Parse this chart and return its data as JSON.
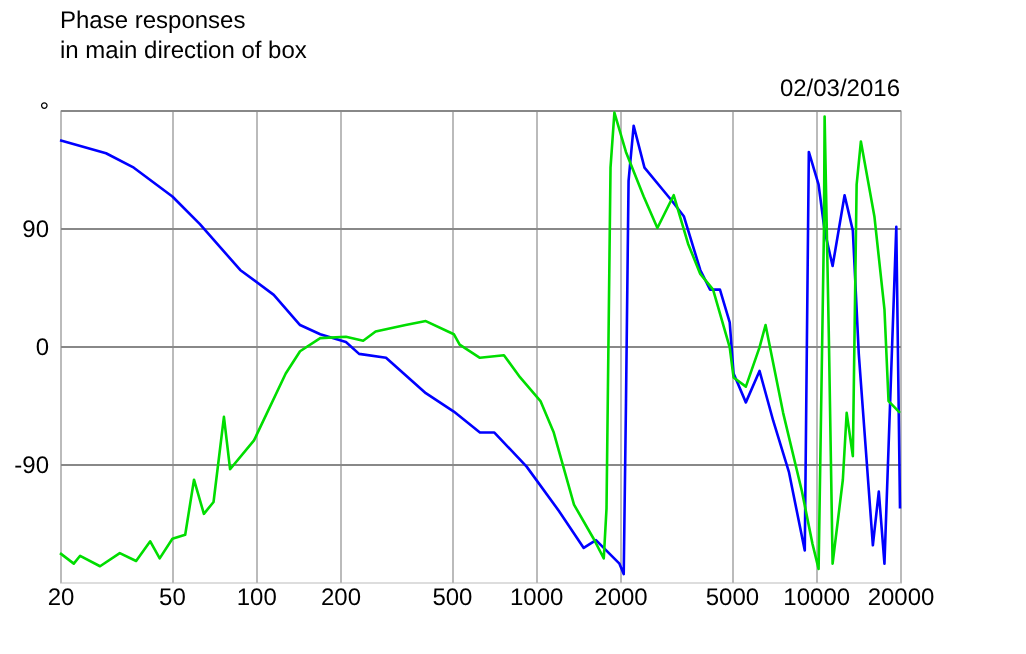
{
  "chart_data": {
    "type": "line",
    "title": "Phase responses",
    "subtitle": "in main direction of box",
    "annotations": [
      "02/03/2016"
    ],
    "xlim": [
      20,
      20000
    ],
    "xticks": [
      20,
      50,
      100,
      200,
      500,
      1000,
      2000,
      5000,
      10000,
      20000
    ],
    "log": "x",
    "ylim": [
      -180,
      180
    ],
    "yticks": [
      {
        "value": 180,
        "label": "°"
      },
      90,
      0,
      -90
    ],
    "grid": true,
    "line_style": "solid",
    "marker": "none",
    "series": [
      {
        "color": "#0000ff",
        "x": [
          20,
          29.2,
          36.7,
          50.4,
          63.2,
          88,
          116,
          144,
          170,
          210,
          234,
          292,
          405,
          510,
          632,
          712,
          928,
          1212,
          1484,
          1641,
          1991,
          2062,
          2100,
          2146,
          2238,
          2446,
          3058,
          3380,
          3870,
          4195,
          4550,
          4930,
          5090,
          5630,
          6300,
          7050,
          8020,
          9140,
          9450,
          10240,
          10760,
          11490,
          12680,
          13570,
          14250,
          16000,
          16800,
          17600,
          19400,
          20000
        ],
        "values": [
          157,
          147,
          136,
          114,
          93,
          58,
          39,
          16,
          9,
          3,
          -6,
          -9,
          -36,
          -50,
          -66,
          -66,
          -92,
          -126,
          -154,
          -148,
          -166,
          -174,
          -46,
          126,
          168,
          136,
          111,
          99,
          58,
          43,
          43,
          18,
          -21,
          -43,
          -19,
          -57,
          -96,
          -156,
          148,
          123,
          88,
          61,
          115,
          88,
          -6,
          -152,
          -111,
          -166,
          91,
          -124
        ]
      },
      {
        "color": "#00dd00",
        "x": [
          20,
          22.4,
          23.6,
          27.8,
          32.7,
          37.4,
          42,
          45.4,
          50.4,
          56,
          60.2,
          65.3,
          70.7,
          77,
          81,
          98.6,
          128,
          144,
          170,
          210,
          242,
          268,
          343,
          405,
          510,
          535,
          632,
          770,
          880,
          1040,
          1160,
          1370,
          1610,
          1750,
          1790,
          1850,
          1910,
          2100,
          2430,
          2720,
          3110,
          3500,
          3870,
          4300,
          4930,
          5090,
          5630,
          6300,
          6620,
          7650,
          8930,
          9740,
          10240,
          10700,
          10760,
          11150,
          11490,
          12500,
          12900,
          13570,
          14000,
          14500,
          16200,
          17600,
          18200,
          20000
        ],
        "values": [
          -158,
          -166,
          -160,
          -168,
          -158,
          -164,
          -149,
          -162,
          -147,
          -144,
          -102,
          -128,
          -119,
          -54,
          -94,
          -72,
          -21,
          -4,
          6,
          7,
          4,
          11,
          16,
          19,
          9,
          1,
          -9,
          -7,
          -24,
          -42,
          -66,
          -121,
          -147,
          -162,
          -124,
          136,
          178,
          148,
          114,
          90,
          115,
          78,
          55,
          43,
          -1,
          -24,
          -31,
          -1,
          16,
          -51,
          -111,
          -151,
          -170,
          88,
          175,
          3,
          -166,
          -102,
          -51,
          -84,
          123,
          156,
          99,
          28,
          -42,
          -51
        ]
      }
    ]
  }
}
